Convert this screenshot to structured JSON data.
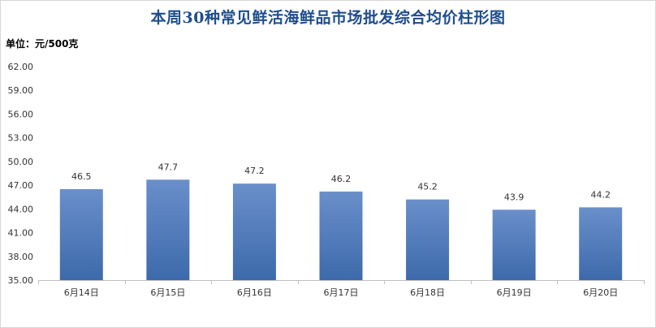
{
  "chart_data": {
    "type": "bar",
    "title": "本周30种常见鲜活海鲜品市场批发综合均价柱形图",
    "unit": "单位：元/500克",
    "xlabel": "",
    "ylabel": "",
    "categories": [
      "6月14日",
      "6月15日",
      "6月16日",
      "6月17日",
      "6月18日",
      "6月19日",
      "6月20日"
    ],
    "values": [
      46.5,
      47.7,
      47.2,
      46.2,
      45.2,
      43.9,
      44.2
    ],
    "value_labels": [
      "46.5",
      "47.7",
      "47.2",
      "46.2",
      "45.2",
      "43.9",
      "44.2"
    ],
    "ylim": [
      35,
      62
    ],
    "yticks": [
      "35.00",
      "38.00",
      "41.00",
      "44.00",
      "47.00",
      "50.00",
      "53.00",
      "56.00",
      "59.00",
      "62.00"
    ],
    "grid": false,
    "legend": "none",
    "bar_color_top": "#6a8fca",
    "bar_color_bottom": "#3d6aab",
    "title_color": "#1f4e8c"
  }
}
